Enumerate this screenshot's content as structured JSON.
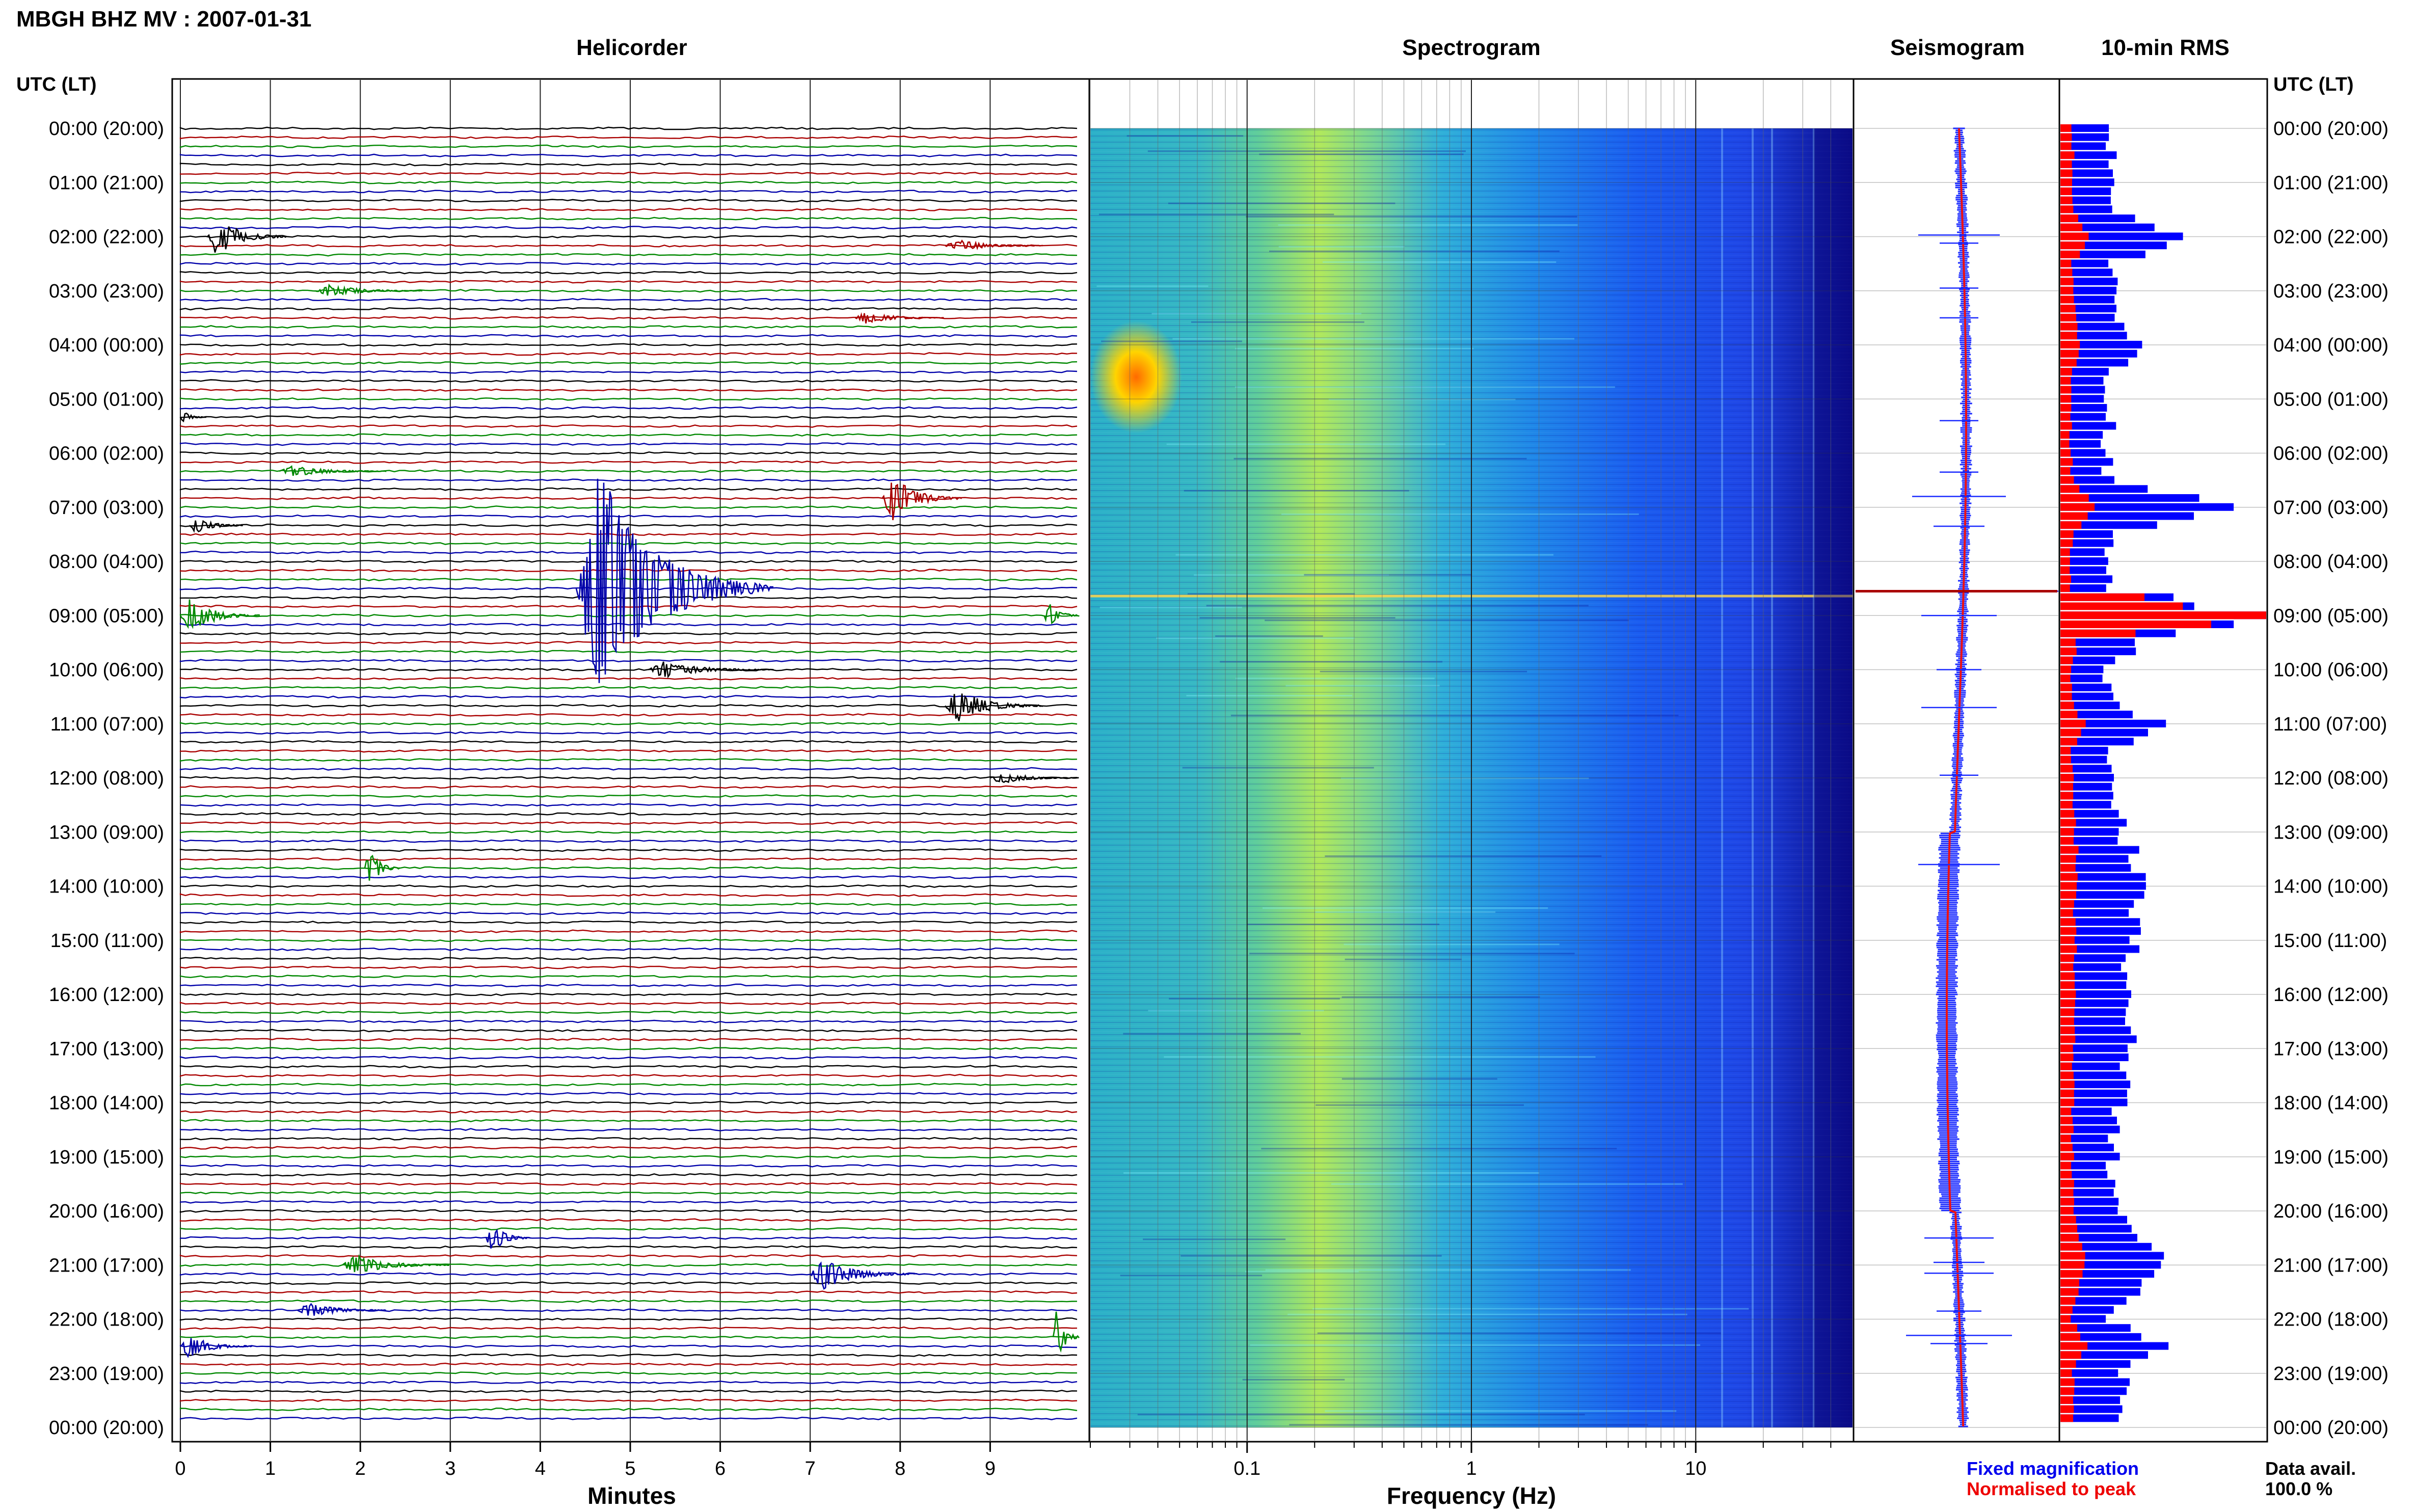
{
  "header": {
    "title": "MBGH BHZ MV : 2007-01-31"
  },
  "panels": {
    "helicorder": "Helicorder",
    "spectrogram": "Spectrogram",
    "seismogram": "Seismogram",
    "rms": "10-min RMS"
  },
  "axes": {
    "time_heading_left": "UTC (LT)",
    "time_heading_right": "UTC (LT)",
    "minutes_label": "Minutes",
    "frequency_label": "Frequency (Hz)",
    "minute_ticks": [
      "0",
      "1",
      "2",
      "3",
      "4",
      "5",
      "6",
      "7",
      "8",
      "9"
    ],
    "frequency_ticks": [
      "0.1",
      "1",
      "10"
    ],
    "hour_labels": [
      "00:00 (20:00)",
      "01:00 (21:00)",
      "02:00 (22:00)",
      "03:00 (23:00)",
      "04:00 (00:00)",
      "05:00 (01:00)",
      "06:00 (02:00)",
      "07:00 (03:00)",
      "08:00 (04:00)",
      "09:00 (05:00)",
      "10:00 (06:00)",
      "11:00 (07:00)",
      "12:00 (08:00)",
      "13:00 (09:00)",
      "14:00 (10:00)",
      "15:00 (11:00)",
      "16:00 (12:00)",
      "17:00 (13:00)",
      "18:00 (14:00)",
      "19:00 (15:00)",
      "20:00 (16:00)",
      "21:00 (17:00)",
      "22:00 (18:00)",
      "23:00 (19:00)",
      "00:00 (20:00)"
    ]
  },
  "legend": {
    "fixed": "Fixed magnification",
    "normalised": "Normalised to peak",
    "fixed_color": "#0000ee",
    "normalised_color": "#ee0000"
  },
  "data_availability": {
    "label": "Data avail.",
    "value": "100.0 %"
  },
  "colors": {
    "trace_cycle": [
      "#000000",
      "#aa0000",
      "#008800",
      "#0000aa"
    ],
    "rms_bar": "#0000ff",
    "rms_norm": "#ff0000"
  },
  "chart_data": {
    "type": "heatmap",
    "station": "MBGH",
    "channel": "BHZ",
    "network": "MV",
    "date": "2007-01-31",
    "helicorder": {
      "x_unit": "minutes",
      "xlim": [
        0,
        10
      ],
      "rows_per_hour": 6,
      "hours": 24,
      "events": [
        {
          "hour": 1.97,
          "minute": 0.3,
          "amplitude": 1.0,
          "duration_min": 0.9
        },
        {
          "hour": 2.12,
          "minute": 8.5,
          "amplitude": 0.3,
          "duration_min": 1.1
        },
        {
          "hour": 2.95,
          "minute": 1.5,
          "amplitude": 0.3,
          "duration_min": 1.2
        },
        {
          "hour": 3.5,
          "minute": 7.5,
          "amplitude": 0.3,
          "duration_min": 1.0
        },
        {
          "hour": 5.4,
          "minute": 0.0,
          "amplitude": 0.3,
          "duration_min": 0.3
        },
        {
          "hour": 6.35,
          "minute": 1.1,
          "amplitude": 0.3,
          "duration_min": 1.2
        },
        {
          "hour": 6.8,
          "minute": 7.8,
          "amplitude": 1.2,
          "duration_min": 0.9
        },
        {
          "hour": 7.35,
          "minute": 0.1,
          "amplitude": 0.5,
          "duration_min": 0.6
        },
        {
          "hour": 8.55,
          "minute": 4.4,
          "amplitude": 6.0,
          "duration_min": 2.2
        },
        {
          "hour": 9.0,
          "minute": 0.0,
          "amplitude": 0.9,
          "duration_min": 0.9
        },
        {
          "hour": 9.0,
          "minute": 9.6,
          "amplitude": 0.7,
          "duration_min": 0.4
        },
        {
          "hour": 10.0,
          "minute": 5.2,
          "amplitude": 0.4,
          "duration_min": 1.4
        },
        {
          "hour": 10.7,
          "minute": 8.5,
          "amplitude": 0.9,
          "duration_min": 1.1
        },
        {
          "hour": 11.95,
          "minute": 9.0,
          "amplitude": 0.3,
          "duration_min": 1.0
        },
        {
          "hour": 13.6,
          "minute": 2.05,
          "amplitude": 1.0,
          "duration_min": 0.4
        },
        {
          "hour": 20.5,
          "minute": 3.4,
          "amplitude": 0.8,
          "duration_min": 0.5
        },
        {
          "hour": 20.95,
          "minute": 1.8,
          "amplitude": 0.5,
          "duration_min": 1.2
        },
        {
          "hour": 21.15,
          "minute": 7.0,
          "amplitude": 0.8,
          "duration_min": 1.2
        },
        {
          "hour": 21.85,
          "minute": 1.3,
          "amplitude": 0.4,
          "duration_min": 1.0
        },
        {
          "hour": 22.3,
          "minute": 9.7,
          "amplitude": 1.4,
          "duration_min": 0.4
        },
        {
          "hour": 22.45,
          "minute": 0.0,
          "amplitude": 0.6,
          "duration_min": 0.8
        }
      ]
    },
    "spectrogram": {
      "x_unit": "Hz",
      "x_scale": "log",
      "xlim": [
        0.02,
        50
      ],
      "colormap": "jet",
      "peak_energy_band_hz": [
        0.12,
        0.6
      ]
    },
    "rms_10min": {
      "hours": [
        0,
        0.5,
        1,
        1.5,
        2,
        2.5,
        3,
        3.5,
        4,
        4.5,
        5,
        5.5,
        6,
        6.5,
        7,
        7.5,
        8,
        8.5,
        9,
        9.5,
        10,
        10.5,
        11,
        11.5,
        12,
        12.5,
        13,
        13.5,
        14,
        14.5,
        15,
        15.5,
        16,
        16.5,
        17,
        17.5,
        18,
        18.5,
        19,
        19.5,
        20,
        20.5,
        21,
        21.5,
        22,
        22.5,
        23,
        23.5,
        24
      ],
      "fixed": [
        0.22,
        0.24,
        0.23,
        0.24,
        0.65,
        0.22,
        0.26,
        0.24,
        0.42,
        0.25,
        0.2,
        0.24,
        0.22,
        0.24,
        0.76,
        0.24,
        0.25,
        0.24,
        1.0,
        0.39,
        0.2,
        0.23,
        0.5,
        0.23,
        0.24,
        0.25,
        0.3,
        0.35,
        0.42,
        0.38,
        0.34,
        0.33,
        0.32,
        0.33,
        0.32,
        0.3,
        0.29,
        0.27,
        0.26,
        0.24,
        0.26,
        0.42,
        0.5,
        0.44,
        0.22,
        0.48,
        0.3,
        0.28,
        0.27
      ],
      "normalised": [
        0.05,
        0.06,
        0.05,
        0.06,
        0.15,
        0.05,
        0.06,
        0.07,
        0.1,
        0.06,
        0.05,
        0.05,
        0.05,
        0.06,
        0.15,
        0.06,
        0.05,
        0.05,
        1.0,
        0.08,
        0.05,
        0.05,
        0.12,
        0.05,
        0.06,
        0.06,
        0.07,
        0.08,
        0.08,
        0.07,
        0.07,
        0.07,
        0.07,
        0.07,
        0.06,
        0.06,
        0.06,
        0.06,
        0.06,
        0.06,
        0.06,
        0.1,
        0.12,
        0.1,
        0.05,
        0.12,
        0.06,
        0.06,
        0.06
      ]
    }
  }
}
